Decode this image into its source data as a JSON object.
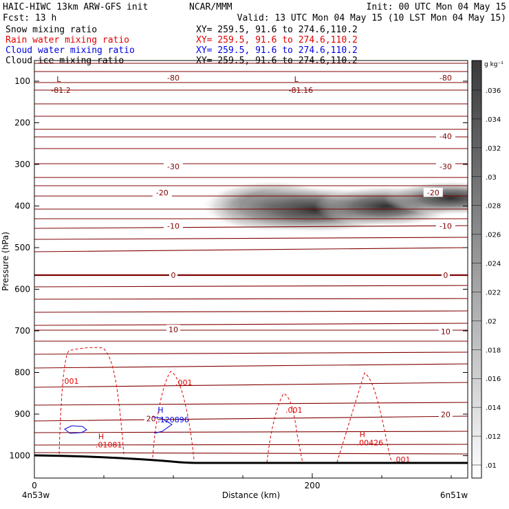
{
  "header": {
    "title": "HAIC-HIWC 13km ARW-GFS init",
    "org": "NCAR/MMM",
    "init": "Init: 00 UTC Mon 04 May 15",
    "fcst": "Fcst:   13 h",
    "valid": "Valid: 13 UTC Mon 04 May 15 (10 LST Mon 04 May 15)"
  },
  "fields": [
    {
      "name": "Snow mixing ratio",
      "xy": "XY= 259.5, 91.6 to 274.6,110.2",
      "color": "#000000"
    },
    {
      "name": "Rain water mixing ratio",
      "xy": "XY= 259.5, 91.6 to 274.6,110.2",
      "color": "#e00000"
    },
    {
      "name": "Cloud water mixing ratio",
      "xy": "XY= 259.5, 91.6 to 274.6,110.2",
      "color": "#0000e0"
    },
    {
      "name": "Cloud ice mixing ratio",
      "xy": "XY= 259.5, 91.6 to 274.6,110.2",
      "color": "#000000"
    }
  ],
  "chart_data": {
    "type": "cross-section",
    "xlabel": "Distance (km)",
    "ylabel": "Pressure (hPa)",
    "xlim": [
      0,
      310
    ],
    "ylim": [
      1050,
      50
    ],
    "x_ticks": [
      0,
      200
    ],
    "y_ticks": [
      100,
      200,
      300,
      400,
      500,
      600,
      700,
      800,
      900,
      1000
    ],
    "left_endpoint": "4n53w",
    "right_endpoint": "6n51w",
    "colorbar": {
      "unit": "g kg⁻¹",
      "ticks": [
        ".01",
        ".012",
        ".014",
        ".016",
        ".018",
        ".02",
        ".022",
        ".024",
        ".026",
        ".028",
        ".03",
        ".032",
        ".034",
        ".036"
      ],
      "color_low": "#ffffff",
      "color_high": "#3a3a3a"
    },
    "temperature_contours": {
      "color": "#800000",
      "labels": [
        {
          "text": "-80",
          "x": 100,
          "p": 92
        },
        {
          "text": "-80",
          "x": 296,
          "p": 92
        },
        {
          "text": "-40",
          "x": 296,
          "p": 232
        },
        {
          "text": "-30",
          "x": 100,
          "p": 305
        },
        {
          "text": "-30",
          "x": 296,
          "p": 305
        },
        {
          "text": "-20",
          "x": 92,
          "p": 368
        },
        {
          "text": "-20",
          "x": 287,
          "p": 368
        },
        {
          "text": "-10",
          "x": 100,
          "p": 448
        },
        {
          "text": "-10",
          "x": 296,
          "p": 448
        },
        {
          "text": "0",
          "x": 100,
          "p": 566
        },
        {
          "text": "0",
          "x": 296,
          "p": 566
        },
        {
          "text": "10",
          "x": 100,
          "p": 697
        },
        {
          "text": "10",
          "x": 296,
          "p": 702
        },
        {
          "text": "20",
          "x": 84,
          "p": 911
        },
        {
          "text": "20",
          "x": 296,
          "p": 901
        }
      ],
      "extrema": [
        {
          "kind": "L",
          "value": "-81.2",
          "x": 12,
          "p": 90
        },
        {
          "kind": "L",
          "value": "-81.16",
          "x": 183,
          "p": 90
        }
      ]
    },
    "rain_water_contours": {
      "color": "#e00000",
      "labels": [
        ".001",
        ".001",
        ".001",
        ".001"
      ],
      "extrema": [
        {
          "kind": "H",
          "value": ".01081",
          "x": 44,
          "p": 980
        },
        {
          "kind": "H",
          "value": ".00426",
          "x": 232,
          "p": 975
        }
      ]
    },
    "cloud_water_contours": {
      "color": "#0000e0",
      "extrema": [
        {
          "kind": "H",
          "value": ".120896",
          "x": 65,
          "p": 925
        }
      ]
    },
    "snow_shading": {
      "level_p": 395,
      "x_range": [
        135,
        310
      ],
      "max": 0.036
    }
  }
}
